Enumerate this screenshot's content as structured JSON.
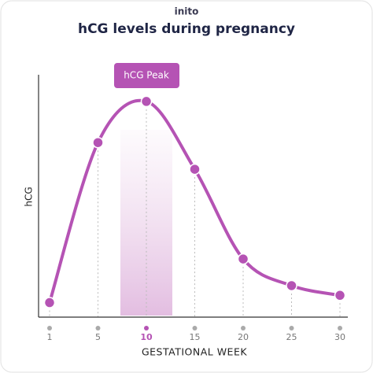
{
  "brand": "inito",
  "chart_data": {
    "type": "line",
    "title": "hCG levels during pregnancy",
    "x_label": "GESTATIONAL WEEK",
    "y_label": "hCG",
    "categories": [
      "1",
      "5",
      "10",
      "15",
      "20",
      "25",
      "30"
    ],
    "values": [
      6,
      72,
      89,
      61,
      24,
      13,
      9
    ],
    "ylim": [
      0,
      100
    ],
    "color": "#b553b4",
    "annotation": "hCG Peak"
  }
}
